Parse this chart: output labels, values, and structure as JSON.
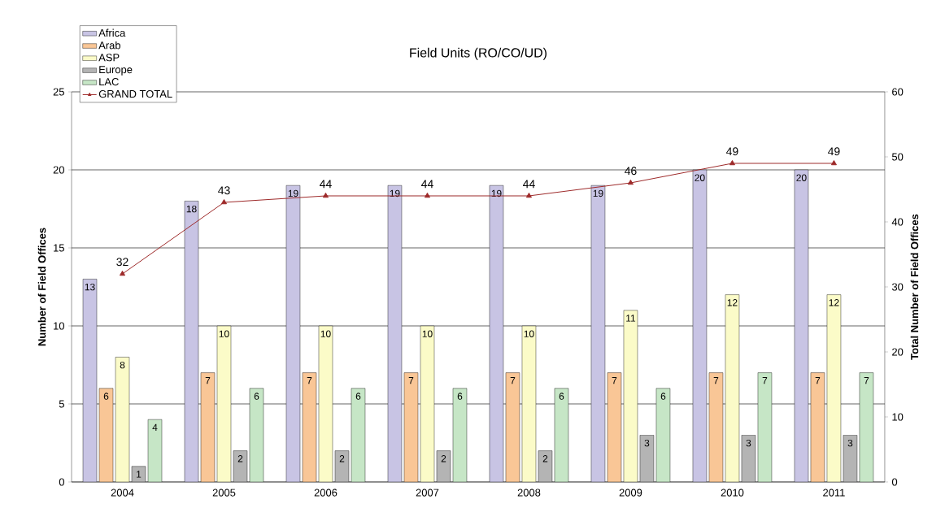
{
  "chart_data": {
    "type": "bar",
    "title": "Field Units (RO/CO/UD)",
    "ylabel": "Number of Field Offices",
    "y2label": "Total Number of Field Offices",
    "categories": [
      "2004",
      "2005",
      "2006",
      "2007",
      "2008",
      "2009",
      "2010",
      "2011"
    ],
    "series": [
      {
        "name": "GRAND TOTAL",
        "type": "line",
        "axis": "y2",
        "color": "#9e2a2a",
        "marker": "triangle",
        "values": [
          32,
          43,
          44,
          44,
          44,
          46,
          49,
          49
        ]
      },
      {
        "name": "Africa",
        "color": "#c8c4e4",
        "values": [
          13,
          18,
          19,
          19,
          19,
          19,
          20,
          20
        ]
      },
      {
        "name": "Arab",
        "color": "#f9c696",
        "values": [
          6,
          7,
          7,
          7,
          7,
          7,
          7,
          7
        ]
      },
      {
        "name": "ASP",
        "color": "#fbfbc8",
        "values": [
          8,
          10,
          10,
          10,
          10,
          11,
          12,
          12
        ]
      },
      {
        "name": "Europe",
        "color": "#b4b4b4",
        "values": [
          1,
          2,
          2,
          2,
          2,
          3,
          3,
          3
        ]
      },
      {
        "name": "LAC",
        "color": "#c6e6c6",
        "values": [
          4,
          6,
          6,
          6,
          6,
          6,
          7,
          7
        ]
      }
    ],
    "ylim": [
      0,
      25
    ],
    "yticks": [
      0,
      5,
      10,
      15,
      20,
      25
    ],
    "y2lim": [
      0,
      60
    ],
    "y2ticks": [
      0,
      10,
      20,
      30,
      40,
      50,
      60
    ],
    "grid": "y",
    "legend": "top left",
    "data_labels": true
  }
}
